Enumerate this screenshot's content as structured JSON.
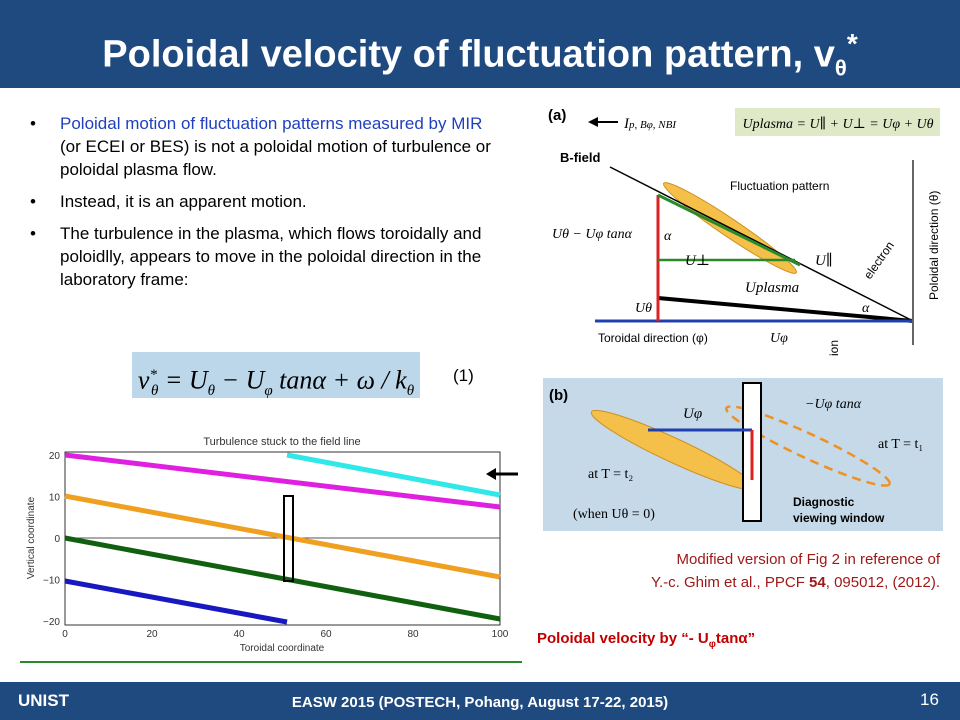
{
  "header": {
    "title": "Poloidal velocity of fluctuation pattern, v",
    "title_sub": "θ",
    "title_sup": "*"
  },
  "bullets": [
    {
      "highlight": "Poloidal motion of fluctuation patterns measured by MIR",
      "text": " (or ECEI or BES) is not a poloidal motion of turbulence or poloidal plasma flow."
    },
    {
      "text": "Instead, it is an apparent motion."
    },
    {
      "text": "The turbulence in the plasma, which flows toroidally and poloidlly, appears to move in the poloidal direction in the laboratory frame:"
    }
  ],
  "equation": {
    "lhs": "v",
    "lhs_sup": "*",
    "lhs_sub": "θ",
    "rhs": "= U",
    "s1": "θ",
    "m1": " − U",
    "s2": "φ",
    "m2": " tanα + ω / k",
    "s3": "θ",
    "number": "(1)"
  },
  "plot": {
    "title": "Turbulence stuck to the field line",
    "ylabel": "Vertical coordinate",
    "xlabel": "Toroidal coordinate",
    "xticks": [
      "0",
      "20",
      "40",
      "60",
      "80",
      "100"
    ],
    "yticks": [
      "20",
      "10",
      "0",
      "−10",
      "−20"
    ]
  },
  "figure_a": {
    "panel": "(a)",
    "legend": "I",
    "legend_rest": "p, Bφ, NBI",
    "formula": "Uplasma = U∥ + U⊥ = Uφ + Uθ",
    "bfield": "B-field",
    "pattern": "Fluctuation pattern",
    "tan": "Uθ − Uφ tanα",
    "alpha1": "α",
    "uperp": "U⊥",
    "upar": "U∥",
    "electron": "electron",
    "poloidal": "Poloidal direction (θ)",
    "utheta": "Uθ",
    "uplasma": "Uplasma",
    "alpha2": "α",
    "toroidal": "Toroidal direction (φ)",
    "uphi": "Uφ",
    "ion": "ion"
  },
  "figure_b": {
    "panel": "(b)",
    "uphi": "Uφ",
    "tan": "−Uφ tanα",
    "t1": "at T = t₁",
    "t2": "at T = t₂",
    "window1": "Diagnostic",
    "window2": "viewing window",
    "when": "(when Uθ = 0)"
  },
  "caption": {
    "line1": "Modified version of Fig 2 in reference of",
    "line2a": "Y.-c. Ghim et al., PPCF ",
    "line2b": "54",
    "line2c": ", 095012, (2012)."
  },
  "note": {
    "a": "Poloidal velocity by “- U",
    "sub": "φ",
    "b": "tanα”"
  },
  "footer": {
    "org": "UNIST",
    "event": "EASW 2015 (POSTECH, Pohang, August 17-22, 2015)",
    "page": "16"
  }
}
